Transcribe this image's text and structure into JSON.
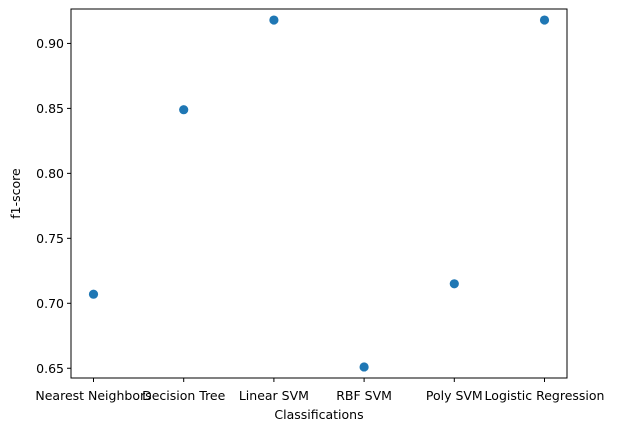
{
  "chart_data": {
    "type": "scatter",
    "title": "",
    "xlabel": "Classifications",
    "ylabel": "f1-score",
    "categories": [
      "Nearest Neighbors",
      "Decision Tree",
      "Linear SVM",
      "RBF SVM",
      "Poly SVM",
      "Logistic Regression"
    ],
    "values": [
      0.707,
      0.849,
      0.918,
      0.651,
      0.715,
      0.918
    ],
    "ylim": [
      0.6425,
      0.9265
    ],
    "yticks": [
      "0.65",
      "0.70",
      "0.75",
      "0.80",
      "0.85",
      "0.90"
    ],
    "grid": false,
    "legend": "none",
    "marker_color": "#1f77b4"
  }
}
